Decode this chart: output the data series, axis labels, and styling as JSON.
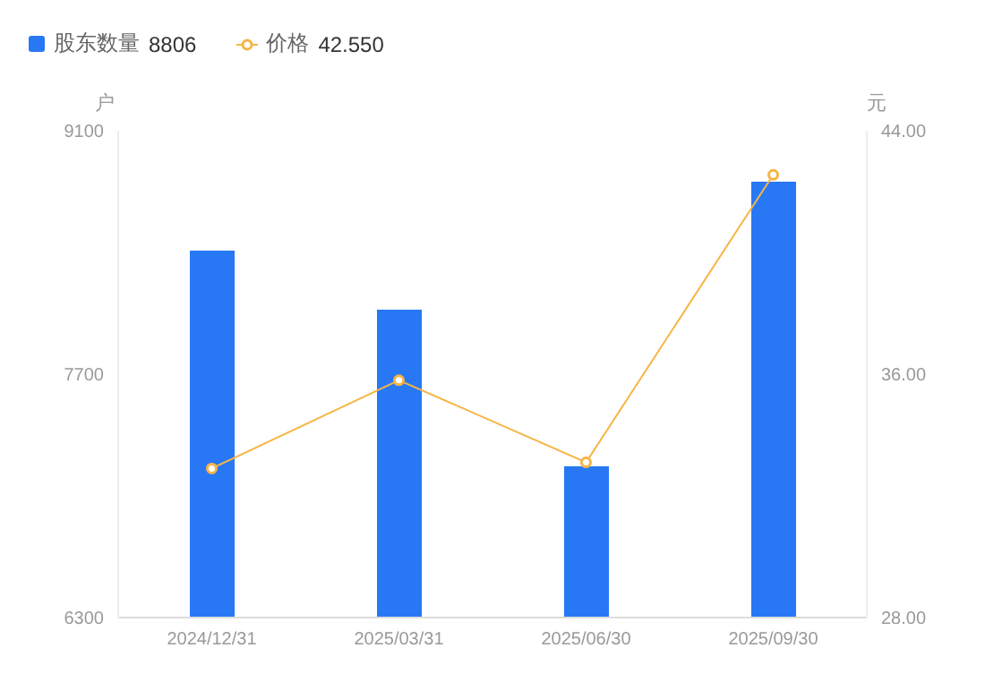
{
  "chart_data": {
    "type": "bar",
    "categories": [
      "2024/12/31",
      "2025/03/31",
      "2025/06/30",
      "2025/09/30"
    ],
    "series": [
      {
        "name": "股东数量",
        "color": "#2878f5",
        "values": [
          8410,
          8070,
          7170,
          8806
        ]
      },
      {
        "name": "价格",
        "type": "line",
        "axis": "y2",
        "color": "#f5b544",
        "values": [
          32.9,
          35.8,
          33.1,
          42.55
        ]
      }
    ],
    "ylabel": "户",
    "y2label": "元",
    "ylim": [
      6300,
      9100
    ],
    "yticks": [
      6300,
      7700,
      9100
    ],
    "y2lim": [
      28,
      44
    ],
    "y2ticks": [
      {
        "value": 28,
        "label": "28.00"
      },
      {
        "value": 36,
        "label": "36.00"
      },
      {
        "value": 44,
        "label": "44.00"
      }
    ],
    "annotations": [
      "8806",
      "42.550"
    ],
    "legend": "top left",
    "marker": "circle",
    "line_style": "solid",
    "grid": false
  }
}
